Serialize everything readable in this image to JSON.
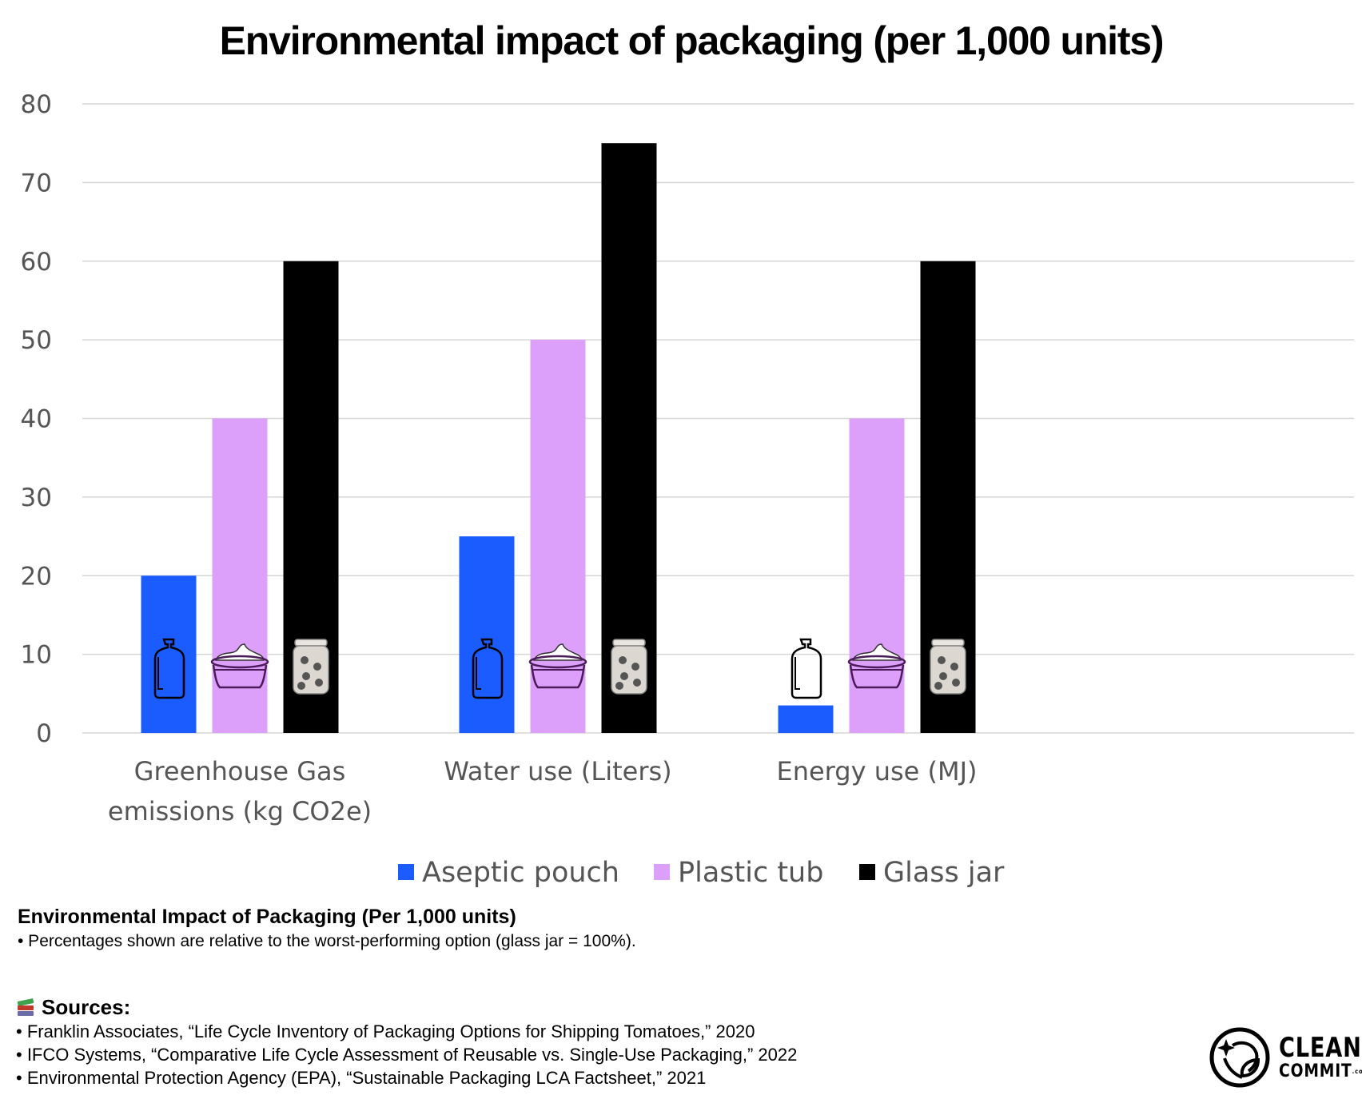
{
  "chart_data": {
    "type": "bar",
    "title": "Environmental impact of packaging (per 1,000 units)",
    "xlabel": "",
    "ylabel": "",
    "ylim": [
      0,
      80
    ],
    "yticks": [
      0,
      10,
      20,
      30,
      40,
      50,
      60,
      70,
      80
    ],
    "grid": true,
    "legend_position": "bottom-center",
    "categories": [
      [
        "Greenhouse Gas",
        "emissions (kg CO2e)"
      ],
      [
        "Water use (Liters)"
      ],
      [
        "Energy use (MJ)"
      ]
    ],
    "series": [
      {
        "name": "Aseptic pouch",
        "color": "#1A5CFF",
        "icon": "pouch-icon",
        "values": [
          20,
          25,
          3.5
        ]
      },
      {
        "name": "Plastic tub",
        "color": "#DDA0FA",
        "icon": "tub-icon",
        "values": [
          40,
          50,
          40
        ]
      },
      {
        "name": "Glass jar",
        "color": "#000000",
        "icon": "jar-icon",
        "values": [
          60,
          75,
          60
        ]
      }
    ]
  },
  "notes": {
    "title": "Environmental Impact of Packaging (Per 1,000 units)",
    "line": "• Percentages shown are relative to the worst-performing option (glass jar = 100%)."
  },
  "sources": {
    "heading": "Sources:",
    "icon": "books-icon",
    "items": [
      "• Franklin Associates, “Life Cycle Inventory of Packaging Options for Shipping Tomatoes,” 2020",
      "• IFCO Systems, “Comparative Life Cycle Assessment of Reusable vs. Single-Use Packaging,” 2022",
      "• Environmental Protection Agency (EPA), “Sustainable Packaging LCA Factsheet,” 2021"
    ]
  },
  "logo": {
    "line1": "CLEAN",
    "line2": "COMMIT",
    "suffix": ".com"
  }
}
